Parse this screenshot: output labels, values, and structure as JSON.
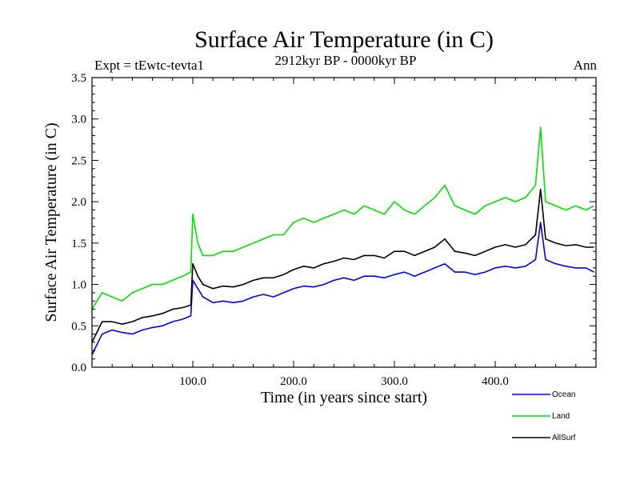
{
  "chart_data": {
    "type": "line",
    "title": "Surface Air Temperature (in C)",
    "subtitle_left": "Expt = tEwtc-tevta1",
    "subtitle_center": "2912kyr BP - 0000kyr BP",
    "subtitle_right": "Ann",
    "xlabel": "Time (in years since start)",
    "ylabel": "Surface Air Temperature (in C)",
    "xlim": [
      0,
      500
    ],
    "ylim": [
      0,
      3.5
    ],
    "x_ticks": [
      100,
      200,
      300,
      400
    ],
    "x_tick_labels": [
      "100.0",
      "200.0",
      "300.0",
      "400.0"
    ],
    "y_ticks": [
      0,
      0.5,
      1.0,
      1.5,
      2.0,
      2.5,
      3.0,
      3.5
    ],
    "y_tick_labels": [
      "0.0",
      "0.5",
      "1.0",
      "1.5",
      "2.0",
      "2.5",
      "3.0",
      "3.5"
    ],
    "series": [
      {
        "name": "Ocean",
        "color": "#0000ff",
        "x": [
          0,
          10,
          20,
          30,
          40,
          50,
          60,
          70,
          80,
          90,
          98,
          100,
          105,
          110,
          120,
          130,
          140,
          150,
          160,
          170,
          180,
          190,
          200,
          210,
          220,
          230,
          240,
          250,
          260,
          270,
          280,
          290,
          300,
          310,
          320,
          330,
          340,
          350,
          360,
          370,
          380,
          390,
          400,
          410,
          420,
          430,
          440,
          445,
          450,
          460,
          470,
          480,
          490,
          498
        ],
        "values": [
          0.15,
          0.4,
          0.45,
          0.42,
          0.4,
          0.45,
          0.48,
          0.5,
          0.55,
          0.58,
          0.62,
          1.05,
          0.95,
          0.85,
          0.78,
          0.8,
          0.78,
          0.8,
          0.85,
          0.88,
          0.85,
          0.9,
          0.95,
          0.98,
          0.97,
          1.0,
          1.05,
          1.08,
          1.05,
          1.1,
          1.1,
          1.08,
          1.12,
          1.15,
          1.1,
          1.15,
          1.2,
          1.25,
          1.15,
          1.15,
          1.12,
          1.15,
          1.2,
          1.22,
          1.2,
          1.22,
          1.3,
          1.75,
          1.3,
          1.25,
          1.22,
          1.2,
          1.2,
          1.15
        ]
      },
      {
        "name": "Land",
        "color": "#00e400",
        "x": [
          0,
          10,
          20,
          30,
          40,
          50,
          60,
          70,
          80,
          90,
          98,
          100,
          105,
          110,
          120,
          130,
          140,
          150,
          160,
          170,
          180,
          190,
          200,
          210,
          220,
          230,
          240,
          250,
          260,
          270,
          280,
          290,
          300,
          310,
          320,
          330,
          340,
          350,
          360,
          370,
          380,
          390,
          400,
          410,
          420,
          430,
          440,
          445,
          450,
          460,
          470,
          480,
          490,
          498
        ],
        "values": [
          0.7,
          0.9,
          0.85,
          0.8,
          0.9,
          0.95,
          1.0,
          1.0,
          1.05,
          1.1,
          1.15,
          1.85,
          1.5,
          1.35,
          1.35,
          1.4,
          1.4,
          1.45,
          1.5,
          1.55,
          1.6,
          1.6,
          1.75,
          1.8,
          1.75,
          1.8,
          1.85,
          1.9,
          1.85,
          1.95,
          1.9,
          1.85,
          2.0,
          1.9,
          1.85,
          1.95,
          2.05,
          2.2,
          1.95,
          1.9,
          1.85,
          1.95,
          2.0,
          2.05,
          2.0,
          2.05,
          2.2,
          2.9,
          2.0,
          1.95,
          1.9,
          1.95,
          1.9,
          1.95
        ]
      },
      {
        "name": "AllSurf",
        "color": "#000000",
        "x": [
          0,
          10,
          20,
          30,
          40,
          50,
          60,
          70,
          80,
          90,
          98,
          100,
          105,
          110,
          120,
          130,
          140,
          150,
          160,
          170,
          180,
          190,
          200,
          210,
          220,
          230,
          240,
          250,
          260,
          270,
          280,
          290,
          300,
          310,
          320,
          330,
          340,
          350,
          360,
          370,
          380,
          390,
          400,
          410,
          420,
          430,
          440,
          445,
          450,
          460,
          470,
          480,
          490,
          498
        ],
        "values": [
          0.3,
          0.55,
          0.55,
          0.52,
          0.55,
          0.6,
          0.62,
          0.65,
          0.7,
          0.72,
          0.75,
          1.25,
          1.1,
          1.0,
          0.95,
          0.98,
          0.97,
          1.0,
          1.05,
          1.08,
          1.08,
          1.12,
          1.18,
          1.22,
          1.2,
          1.25,
          1.28,
          1.32,
          1.3,
          1.35,
          1.35,
          1.32,
          1.4,
          1.4,
          1.35,
          1.4,
          1.45,
          1.55,
          1.4,
          1.38,
          1.35,
          1.4,
          1.45,
          1.48,
          1.45,
          1.48,
          1.6,
          2.15,
          1.55,
          1.5,
          1.47,
          1.48,
          1.45,
          1.45
        ]
      }
    ],
    "legend_position": "bottom-right"
  }
}
